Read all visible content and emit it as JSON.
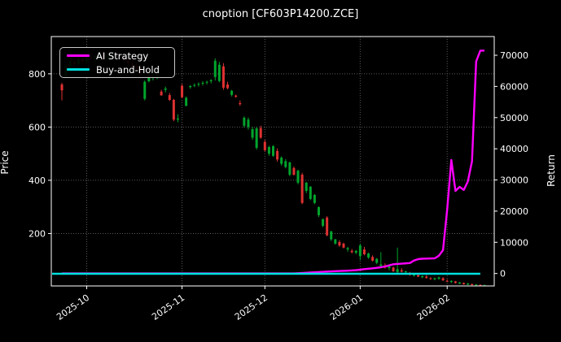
{
  "title": "cnoption [CF603P14200.ZCE]",
  "colors": {
    "background": "#000000",
    "text": "#ffffff",
    "grid": "#5a5a5a",
    "spine": "#ffffff",
    "candle_up": "#00a42c",
    "candle_down": "#df3131",
    "strategy_line": "#ff00ff",
    "buy_hold_line": "#00e0e0"
  },
  "legend": {
    "items": [
      {
        "label": "AI Strategy",
        "color": "#ff00ff"
      },
      {
        "label": "Buy-and-Hold",
        "color": "#00e0e0"
      }
    ]
  },
  "chart_data": {
    "type": "candlestick+line",
    "title": "cnoption [CF603P14200.ZCE]",
    "grid": true,
    "legend_position": "upper left",
    "x_axis": {
      "tick_labels": [
        "2025-10",
        "2025-11",
        "2025-12",
        "2026-01",
        "2026-02"
      ]
    },
    "left_axis": {
      "label": "Price",
      "ticks": [
        200,
        400,
        600,
        800
      ],
      "range": [
        3,
        940
      ]
    },
    "right_axis": {
      "label": "Return",
      "ticks": [
        0,
        10000,
        20000,
        30000,
        40000,
        50000,
        60000,
        70000
      ],
      "range": [
        -4000,
        76000
      ]
    },
    "candles_format": [
      "date",
      "open",
      "high",
      "low",
      "close"
    ],
    "candles": [
      [
        "2025-09-23",
        760,
        766,
        700,
        738
      ],
      [
        "2025-09-24",
        790,
        832,
        786,
        828
      ],
      [
        "2025-09-25",
        828,
        850,
        820,
        845
      ],
      [
        "2025-09-26",
        845,
        852,
        830,
        836
      ],
      [
        "2025-09-29",
        836,
        860,
        832,
        855
      ],
      [
        "2025-09-30",
        855,
        862,
        840,
        848
      ],
      [
        "2025-10-01",
        848,
        870,
        835,
        862
      ],
      [
        "2025-10-02",
        862,
        878,
        850,
        858
      ],
      [
        "2025-10-03",
        858,
        872,
        845,
        866
      ],
      [
        "2025-10-06",
        866,
        885,
        855,
        872
      ],
      [
        "2025-10-07",
        872,
        880,
        852,
        860
      ],
      [
        "2025-10-08",
        860,
        875,
        848,
        868
      ],
      [
        "2025-10-09",
        868,
        882,
        856,
        874
      ],
      [
        "2025-10-10",
        874,
        890,
        860,
        869
      ],
      [
        "2025-10-13",
        869,
        884,
        854,
        862
      ],
      [
        "2025-10-14",
        862,
        876,
        842,
        850
      ],
      [
        "2025-10-15",
        850,
        865,
        832,
        840
      ],
      [
        "2025-10-16",
        840,
        856,
        822,
        830
      ],
      [
        "2025-10-17",
        830,
        845,
        810,
        818
      ],
      [
        "2025-10-20",
        818,
        832,
        795,
        806
      ],
      [
        "2025-10-21",
        706,
        775,
        700,
        770
      ],
      [
        "2025-10-22",
        772,
        795,
        768,
        788
      ],
      [
        "2025-10-23",
        788,
        800,
        775,
        792
      ],
      [
        "2025-10-24",
        792,
        802,
        780,
        796
      ],
      [
        "2025-10-27",
        733,
        740,
        718,
        719
      ],
      [
        "2025-10-28",
        740,
        752,
        730,
        745
      ],
      [
        "2025-10-29",
        720,
        728,
        698,
        702
      ],
      [
        "2025-10-30",
        702,
        706,
        622,
        628
      ],
      [
        "2025-10-31",
        628,
        648,
        618,
        632
      ],
      [
        "2025-11-03",
        755,
        762,
        708,
        712
      ],
      [
        "2025-11-04",
        680,
        715,
        678,
        710
      ],
      [
        "2025-11-05",
        750,
        758,
        744,
        754
      ],
      [
        "2025-11-06",
        756,
        764,
        750,
        758
      ],
      [
        "2025-11-07",
        760,
        768,
        752,
        762
      ],
      [
        "2025-11-10",
        764,
        772,
        756,
        766
      ],
      [
        "2025-11-11",
        768,
        774,
        760,
        770
      ],
      [
        "2025-11-12",
        772,
        780,
        764,
        776
      ],
      [
        "2025-11-13",
        788,
        858,
        775,
        849
      ],
      [
        "2025-11-14",
        773,
        845,
        768,
        834
      ],
      [
        "2025-11-17",
        828,
        840,
        740,
        748
      ],
      [
        "2025-11-18",
        760,
        770,
        742,
        746
      ],
      [
        "2025-11-19",
        721,
        740,
        715,
        736
      ],
      [
        "2025-11-20",
        718,
        722,
        710,
        714
      ],
      [
        "2025-11-21",
        690,
        700,
        680,
        686
      ],
      [
        "2025-11-24",
        605,
        640,
        598,
        635
      ],
      [
        "2025-11-25",
        600,
        636,
        590,
        628
      ],
      [
        "2025-11-26",
        560,
        600,
        552,
        592
      ],
      [
        "2025-11-27",
        522,
        600,
        515,
        595
      ],
      [
        "2025-11-28",
        596,
        605,
        556,
        560
      ],
      [
        "2025-12-01",
        544,
        552,
        508,
        513
      ],
      [
        "2025-12-02",
        500,
        530,
        492,
        525
      ],
      [
        "2025-12-03",
        492,
        532,
        488,
        528
      ],
      [
        "2025-12-04",
        510,
        520,
        470,
        478
      ],
      [
        "2025-12-05",
        462,
        490,
        455,
        485
      ],
      [
        "2025-12-08",
        450,
        480,
        445,
        472
      ],
      [
        "2025-12-09",
        421,
        470,
        415,
        467
      ],
      [
        "2025-12-10",
        446,
        452,
        418,
        421
      ],
      [
        "2025-12-11",
        391,
        440,
        385,
        436
      ],
      [
        "2025-12-12",
        421,
        428,
        310,
        315
      ],
      [
        "2025-12-15",
        360,
        394,
        352,
        391
      ],
      [
        "2025-12-16",
        330,
        378,
        325,
        376
      ],
      [
        "2025-12-17",
        315,
        348,
        310,
        345
      ],
      [
        "2025-12-18",
        269,
        302,
        262,
        299
      ],
      [
        "2025-12-19",
        229,
        256,
        224,
        254
      ],
      [
        "2025-12-22",
        260,
        265,
        190,
        193
      ],
      [
        "2025-12-23",
        178,
        210,
        172,
        208
      ],
      [
        "2025-12-24",
        162,
        180,
        158,
        178
      ],
      [
        "2025-12-25",
        168,
        175,
        150,
        155
      ],
      [
        "2025-12-26",
        162,
        166,
        144,
        147
      ],
      [
        "2025-12-29",
        140,
        150,
        132,
        145
      ],
      [
        "2025-12-30",
        135,
        142,
        125,
        130
      ],
      [
        "2025-12-31",
        128,
        138,
        122,
        135
      ],
      [
        "2026-01-02",
        115,
        162,
        100,
        155
      ],
      [
        "2026-01-05",
        140,
        150,
        118,
        122
      ],
      [
        "2026-01-06",
        110,
        128,
        105,
        125
      ],
      [
        "2026-01-07",
        112,
        118,
        95,
        98
      ],
      [
        "2026-01-08",
        90,
        108,
        85,
        105
      ],
      [
        "2026-01-09",
        78,
        130,
        74,
        84
      ],
      [
        "2026-01-12",
        80,
        88,
        68,
        72
      ],
      [
        "2026-01-13",
        70,
        80,
        62,
        76
      ],
      [
        "2026-01-14",
        72,
        76,
        56,
        58
      ],
      [
        "2026-01-15",
        55,
        147,
        50,
        66
      ],
      [
        "2026-01-16",
        62,
        70,
        54,
        57
      ],
      [
        "2026-01-19",
        55,
        60,
        45,
        58
      ],
      [
        "2026-01-20",
        50,
        56,
        42,
        44
      ],
      [
        "2026-01-21",
        42,
        50,
        38,
        47
      ],
      [
        "2026-01-22",
        44,
        48,
        36,
        38
      ],
      [
        "2026-01-23",
        36,
        42,
        32,
        40
      ],
      [
        "2026-01-26",
        38,
        44,
        30,
        33
      ],
      [
        "2026-01-27",
        32,
        36,
        26,
        30
      ],
      [
        "2026-01-28",
        28,
        34,
        24,
        32
      ],
      [
        "2026-01-29",
        30,
        38,
        26,
        35
      ],
      [
        "2026-01-30",
        32,
        36,
        22,
        24
      ],
      [
        "2026-02-02",
        22,
        28,
        18,
        20
      ],
      [
        "2026-02-03",
        18,
        24,
        14,
        22
      ],
      [
        "2026-02-04",
        20,
        22,
        12,
        14
      ],
      [
        "2026-02-05",
        12,
        18,
        10,
        16
      ],
      [
        "2026-02-06",
        14,
        16,
        8,
        9
      ],
      [
        "2026-02-09",
        8,
        14,
        6,
        12
      ],
      [
        "2026-02-10",
        10,
        12,
        5,
        6
      ],
      [
        "2026-02-11",
        6,
        10,
        4,
        8
      ],
      [
        "2026-02-12",
        7,
        9,
        3,
        4
      ],
      [
        "2026-02-13",
        4,
        8,
        3,
        6
      ]
    ],
    "series": [
      {
        "name": "AI Strategy",
        "axis": "right",
        "color": "#ff00ff",
        "extend_left": false,
        "points": [
          [
            "2025-09-23",
            0
          ],
          [
            "2025-12-10",
            0
          ],
          [
            "2025-12-12",
            150
          ],
          [
            "2025-12-16",
            300
          ],
          [
            "2025-12-18",
            450
          ],
          [
            "2025-12-22",
            600
          ],
          [
            "2025-12-24",
            750
          ],
          [
            "2025-12-29",
            900
          ],
          [
            "2025-12-31",
            1050
          ],
          [
            "2026-01-02",
            1200
          ],
          [
            "2026-01-05",
            1400
          ],
          [
            "2026-01-07",
            1650
          ],
          [
            "2026-01-08",
            1800
          ],
          [
            "2026-01-09",
            2000
          ],
          [
            "2026-01-12",
            2250
          ],
          [
            "2026-01-13",
            2600
          ],
          [
            "2026-01-14",
            2950
          ],
          [
            "2026-01-15",
            3050
          ],
          [
            "2026-01-16",
            3150
          ],
          [
            "2026-01-19",
            3250
          ],
          [
            "2026-01-20",
            3350
          ],
          [
            "2026-01-21",
            4150
          ],
          [
            "2026-01-22",
            4600
          ],
          [
            "2026-01-23",
            4720
          ],
          [
            "2026-01-26",
            4780
          ],
          [
            "2026-01-27",
            4800
          ],
          [
            "2026-01-28",
            4850
          ],
          [
            "2026-01-29",
            5700
          ],
          [
            "2026-01-30",
            7500
          ],
          [
            "2026-02-02",
            20500
          ],
          [
            "2026-02-03",
            36400
          ],
          [
            "2026-02-04",
            26500
          ],
          [
            "2026-02-05",
            27800
          ],
          [
            "2026-02-06",
            26800
          ],
          [
            "2026-02-09",
            29500
          ],
          [
            "2026-02-10",
            36000
          ],
          [
            "2026-02-11",
            68000
          ],
          [
            "2026-02-12",
            71500
          ],
          [
            "2026-02-13",
            71500
          ]
        ]
      },
      {
        "name": "Buy-and-Hold",
        "axis": "right",
        "color": "#00e0e0",
        "extend_left": true,
        "points": [
          [
            "2025-09-23",
            -100
          ],
          [
            "2026-02-12",
            -100
          ]
        ]
      }
    ]
  }
}
